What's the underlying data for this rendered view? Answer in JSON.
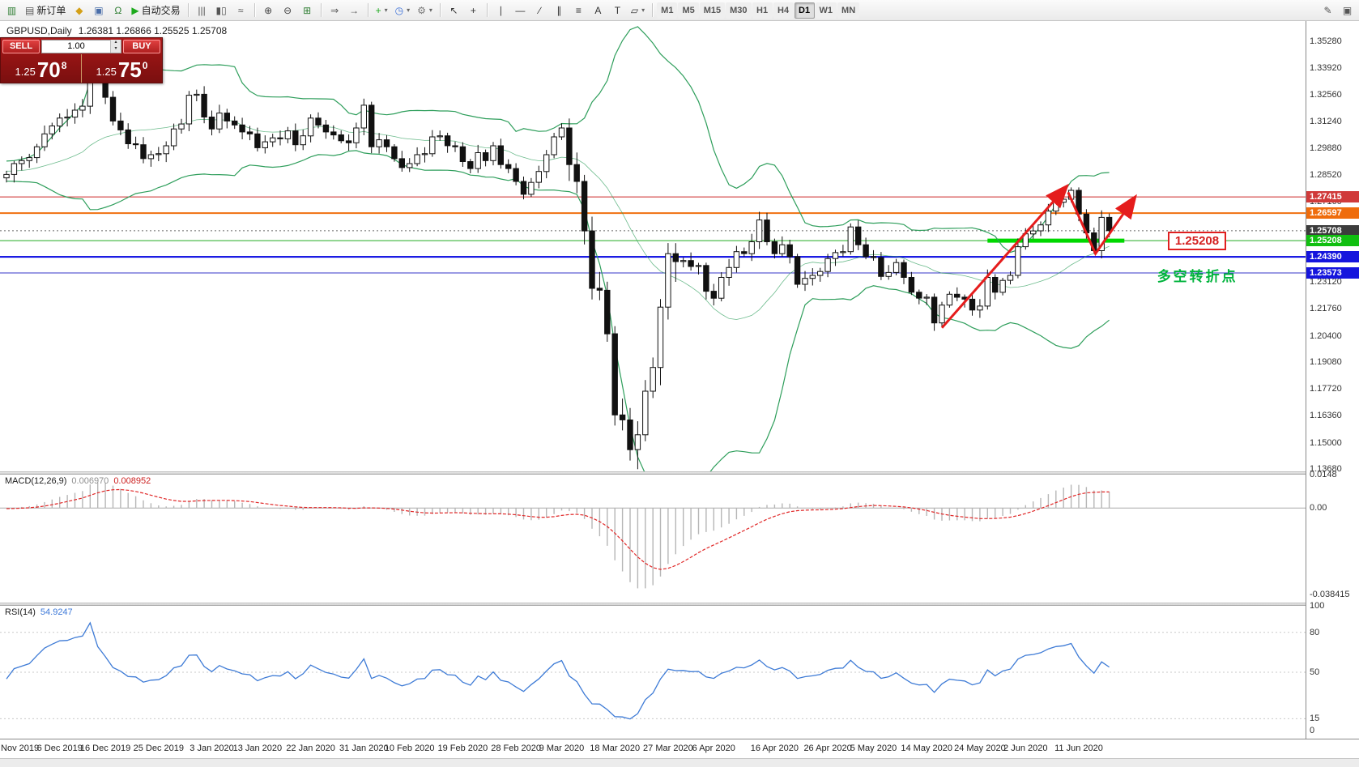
{
  "icons": {
    "dropdown_caret": "▾",
    "spinner_up": "▴",
    "spinner_down": "▾"
  },
  "toolbar": {
    "groups": [
      {
        "items": [
          {
            "name": "new-chart-mini-icon",
            "glyph": "▥",
            "color": "#2e7d32"
          },
          {
            "name": "new-order-button",
            "glyph": "▤",
            "color": "#555",
            "label": "新订单"
          },
          {
            "name": "mql5-icon",
            "glyph": "◆",
            "color": "#d4a017"
          },
          {
            "name": "community-icon",
            "glyph": "▣",
            "color": "#4a6ea9"
          },
          {
            "name": "support-icon",
            "glyph": "Ω",
            "color": "#2e7d32"
          },
          {
            "name": "auto-trading-button",
            "glyph": "▶",
            "color": "#1daa1d",
            "label": "自动交易"
          }
        ]
      },
      {
        "items": [
          {
            "name": "bar-chart-icon",
            "glyph": "|||",
            "color": "#555"
          },
          {
            "name": "candlestick-chart-icon",
            "glyph": "▮▯",
            "color": "#555"
          },
          {
            "name": "line-chart-icon",
            "glyph": "≈",
            "color": "#555"
          }
        ]
      },
      {
        "items": [
          {
            "name": "zoom-in-icon",
            "glyph": "⊕",
            "color": "#444"
          },
          {
            "name": "zoom-out-icon",
            "glyph": "⊖",
            "color": "#444"
          },
          {
            "name": "tile-windows-icon",
            "glyph": "⊞",
            "color": "#2e7d32"
          }
        ]
      },
      {
        "items": [
          {
            "name": "auto-scroll-icon",
            "glyph": "⇒",
            "color": "#555"
          },
          {
            "name": "shift-end-icon",
            "glyph": "→",
            "color": "#555"
          }
        ]
      },
      {
        "items": [
          {
            "name": "new-chart-icon",
            "glyph": "+",
            "color": "#1daa1d",
            "dropdown": true
          },
          {
            "name": "periods-icon",
            "glyph": "◷",
            "color": "#3a6fd8",
            "dropdown": true
          },
          {
            "name": "templates-icon",
            "glyph": "⚙",
            "color": "#777",
            "dropdown": true
          }
        ]
      },
      {
        "items": [
          {
            "name": "cursor-icon",
            "glyph": "↖",
            "color": "#333"
          },
          {
            "name": "crosshair-icon",
            "glyph": "+",
            "color": "#333"
          }
        ]
      },
      {
        "items": [
          {
            "name": "vertical-line-icon",
            "glyph": "∣",
            "color": "#333"
          },
          {
            "name": "horizontal-line-icon",
            "glyph": "―",
            "color": "#333"
          },
          {
            "name": "trendline-icon",
            "glyph": "∕",
            "color": "#333"
          },
          {
            "name": "channel-icon",
            "glyph": "∥",
            "color": "#333"
          },
          {
            "name": "fibonacci-icon",
            "glyph": "≡",
            "color": "#333"
          },
          {
            "name": "text-icon",
            "glyph": "A",
            "color": "#333"
          },
          {
            "name": "label-icon",
            "glyph": "T",
            "color": "#333"
          },
          {
            "name": "shapes-icon",
            "glyph": "▱",
            "color": "#333",
            "dropdown": true
          }
        ]
      }
    ],
    "timeframes": [
      "M1",
      "M5",
      "M15",
      "M30",
      "H1",
      "H4",
      "D1",
      "W1",
      "MN"
    ],
    "active_timeframe": "D1",
    "right_items": [
      {
        "name": "pencil-icon",
        "glyph": "✎",
        "color": "#555"
      },
      {
        "name": "panel-icon",
        "glyph": "▣",
        "color": "#555"
      }
    ]
  },
  "trade_panel": {
    "sell_label": "SELL",
    "buy_label": "BUY",
    "volume": "1.00",
    "sell_price_prefix": "1.25",
    "sell_price_pips": "70",
    "sell_price_point": "8",
    "buy_price_prefix": "1.25",
    "buy_price_pips": "75",
    "buy_price_point": "0"
  },
  "chart_header": {
    "symbol_period": "GBPUSD,Daily",
    "ohlc": "1.26381 1.26866 1.25525 1.25708"
  },
  "macd_panel": {
    "title": "MACD(12,26,9)",
    "value_main": "0.006970",
    "value_signal": "0.008952",
    "axis_labels": [
      {
        "text": "0.0148",
        "v": 0.0148
      },
      {
        "text": "0.00",
        "v": 0
      },
      {
        "text": "-0.038415",
        "v": -0.038415
      }
    ]
  },
  "rsi_panel": {
    "title": "RSI(14)",
    "value": "54.9247",
    "axis_labels": [
      {
        "text": "100",
        "v": 100
      },
      {
        "text": "80",
        "v": 80
      },
      {
        "text": "50",
        "v": 50
      },
      {
        "text": "15",
        "v": 15
      },
      {
        "text": "0",
        "v": 0
      }
    ]
  },
  "price_axis": {
    "grid_labels": [
      "1.35280",
      "1.33920",
      "1.32560",
      "1.31240",
      "1.29880",
      "1.28520",
      "1.27160",
      "1.23120",
      "1.21760",
      "1.20400",
      "1.19080",
      "1.17720",
      "1.16360",
      "1.15000",
      "1.13680"
    ],
    "tags": [
      {
        "text": "1.27415",
        "bg": "#d03a3a"
      },
      {
        "text": "1.26597",
        "bg": "#ef6c0c"
      },
      {
        "text": "1.25708",
        "bg": "#3c3c3c"
      },
      {
        "text": "1.25208",
        "bg": "#10bf10"
      },
      {
        "text": "1.24390",
        "bg": "#1515dd"
      },
      {
        "text": "1.23573",
        "bg": "#1515dd"
      }
    ]
  },
  "annotations": {
    "price_callout": "1.25208",
    "turning_point_text": "多空转折点"
  },
  "time_axis": {
    "labels": [
      {
        "text": "7 Nov 2019",
        "i": 0
      },
      {
        "text": "6 Dec 2019",
        "i": 7
      },
      {
        "text": "16 Dec 2019",
        "i": 13
      },
      {
        "text": "25 Dec 2019",
        "i": 20
      },
      {
        "text": "3 Jan 2020",
        "i": 27
      },
      {
        "text": "13 Jan 2020",
        "i": 33
      },
      {
        "text": "22 Jan 2020",
        "i": 40
      },
      {
        "text": "31 Jan 2020",
        "i": 47
      },
      {
        "text": "10 Feb 2020",
        "i": 53
      },
      {
        "text": "19 Feb 2020",
        "i": 60
      },
      {
        "text": "28 Feb 2020",
        "i": 67
      },
      {
        "text": "9 Mar 2020",
        "i": 73
      },
      {
        "text": "18 Mar 2020",
        "i": 80
      },
      {
        "text": "27 Mar 2020",
        "i": 87
      },
      {
        "text": "6 Apr 2020",
        "i": 93
      },
      {
        "text": "16 Apr 2020",
        "i": 101
      },
      {
        "text": "26 Apr 2020",
        "i": 108
      },
      {
        "text": "5 May 2020",
        "i": 114
      },
      {
        "text": "14 May 2020",
        "i": 121
      },
      {
        "text": "24 May 2020",
        "i": 128
      },
      {
        "text": "2 Jun 2020",
        "i": 134
      },
      {
        "text": "11 Jun 2020",
        "i": 141
      }
    ]
  },
  "chart_data": {
    "type": "candlestick",
    "symbol": "GBPUSD",
    "period": "Daily",
    "last_bar_ohlc": [
      1.26381,
      1.26866,
      1.25525,
      1.25708
    ],
    "y_range": [
      1.1355,
      1.363
    ],
    "first_open": 1.2838,
    "wick_base": 0.0013,
    "wick_var": 0.003,
    "pre_closes": [
      1.2895,
      1.287,
      1.285,
      1.2825,
      1.2855,
      1.288,
      1.2905,
      1.2885,
      1.286,
      1.284,
      1.2835,
      1.2858,
      1.289,
      1.2918,
      1.2892,
      1.2856,
      1.2866,
      1.2888,
      1.2912
    ],
    "closes": [
      1.2855,
      1.291,
      1.2925,
      1.294,
      1.2995,
      1.306,
      1.31,
      1.314,
      1.3145,
      1.318,
      1.32,
      1.35,
      1.3335,
      1.3245,
      1.3125,
      1.308,
      1.301,
      1.3005,
      1.2935,
      1.2955,
      1.296,
      1.3,
      1.3085,
      1.311,
      1.3255,
      1.326,
      1.3145,
      1.3085,
      1.3165,
      1.3125,
      1.3105,
      1.307,
      1.306,
      1.299,
      1.302,
      1.304,
      1.3035,
      1.3075,
      1.3005,
      1.305,
      1.314,
      1.3105,
      1.307,
      1.3055,
      1.3025,
      1.3015,
      1.309,
      1.3205,
      1.2995,
      1.303,
      1.2995,
      1.2935,
      1.289,
      1.291,
      1.2955,
      1.296,
      1.3045,
      1.305,
      1.3,
      1.2995,
      1.292,
      1.2885,
      1.2965,
      1.2925,
      1.3,
      1.2905,
      1.2885,
      1.282,
      1.2755,
      1.2815,
      1.287,
      1.2955,
      1.3045,
      1.309,
      1.2905,
      1.282,
      1.257,
      1.228,
      1.227,
      1.205,
      1.164,
      1.1615,
      1.1465,
      1.154,
      1.176,
      1.188,
      1.2185,
      1.2455,
      1.2415,
      1.242,
      1.239,
      1.2395,
      1.2265,
      1.223,
      1.2335,
      1.2385,
      1.2465,
      1.2455,
      1.2515,
      1.2625,
      1.2515,
      1.2455,
      1.25,
      1.244,
      1.23,
      1.233,
      1.2345,
      1.2365,
      1.243,
      1.246,
      1.2465,
      1.259,
      1.25,
      1.244,
      1.2435,
      1.234,
      1.236,
      1.241,
      1.2335,
      1.226,
      1.223,
      1.2235,
      1.2105,
      1.2195,
      1.225,
      1.2235,
      1.2225,
      1.217,
      1.219,
      1.2335,
      1.226,
      1.232,
      1.2345,
      1.249,
      1.2555,
      1.257,
      1.26,
      1.267,
      1.2715,
      1.273,
      1.2775,
      1.2655,
      1.256,
      1.247,
      1.2638,
      1.2571
    ],
    "special": {
      "spike_high_i": 11,
      "spike_high": 1.3516,
      "crash_low_i": 82,
      "crash_low": 1.141,
      "big_wick_from": 74,
      "big_wick_to": 88,
      "big_wick_mult": 2.4
    },
    "hlines": [
      {
        "price": 1.27415,
        "color": "#cc2626",
        "w": 1
      },
      {
        "price": 1.26597,
        "color": "#f07010",
        "w": 2
      },
      {
        "price": 1.25208,
        "color": "#22aa22",
        "w": 1
      },
      {
        "price": 1.2439,
        "color": "#0202e0",
        "w": 2
      },
      {
        "price": 1.23573,
        "color": "#3535c8",
        "w": 1
      }
    ],
    "current_price_line": {
      "price": 1.25708,
      "color": "#666666"
    },
    "support_segment": {
      "price": 1.25208,
      "from_i": 129,
      "to_i": 147,
      "color": "#00d800",
      "w": 5
    },
    "arrow_color": "#e51c1c",
    "arrows": [
      {
        "points": [
          [
            123,
            1.208
          ],
          [
            139.3,
            1.279
          ]
        ]
      },
      {
        "points": [
          [
            139.6,
            1.2765
          ],
          [
            143.2,
            1.2455
          ],
          [
            148.3,
            1.2735
          ]
        ]
      }
    ],
    "callout_pos": {
      "i": 152.7,
      "price": 1.2566
    },
    "text_anno_pos": {
      "i": 151.3,
      "price": 1.24
    },
    "indicators": {
      "bollinger": {
        "period": 20,
        "deviation": 2,
        "color": "#2e9e5b"
      },
      "macd": {
        "fast": 12,
        "slow": 26,
        "signal": 9,
        "range": [
          0.0148,
          -0.042
        ],
        "hist_color": "#b6b6b6",
        "signal_color": "#e02626"
      },
      "rsi": {
        "period": 14,
        "color": "#3e7bd6",
        "levels": [
          80,
          50,
          15
        ]
      }
    }
  }
}
